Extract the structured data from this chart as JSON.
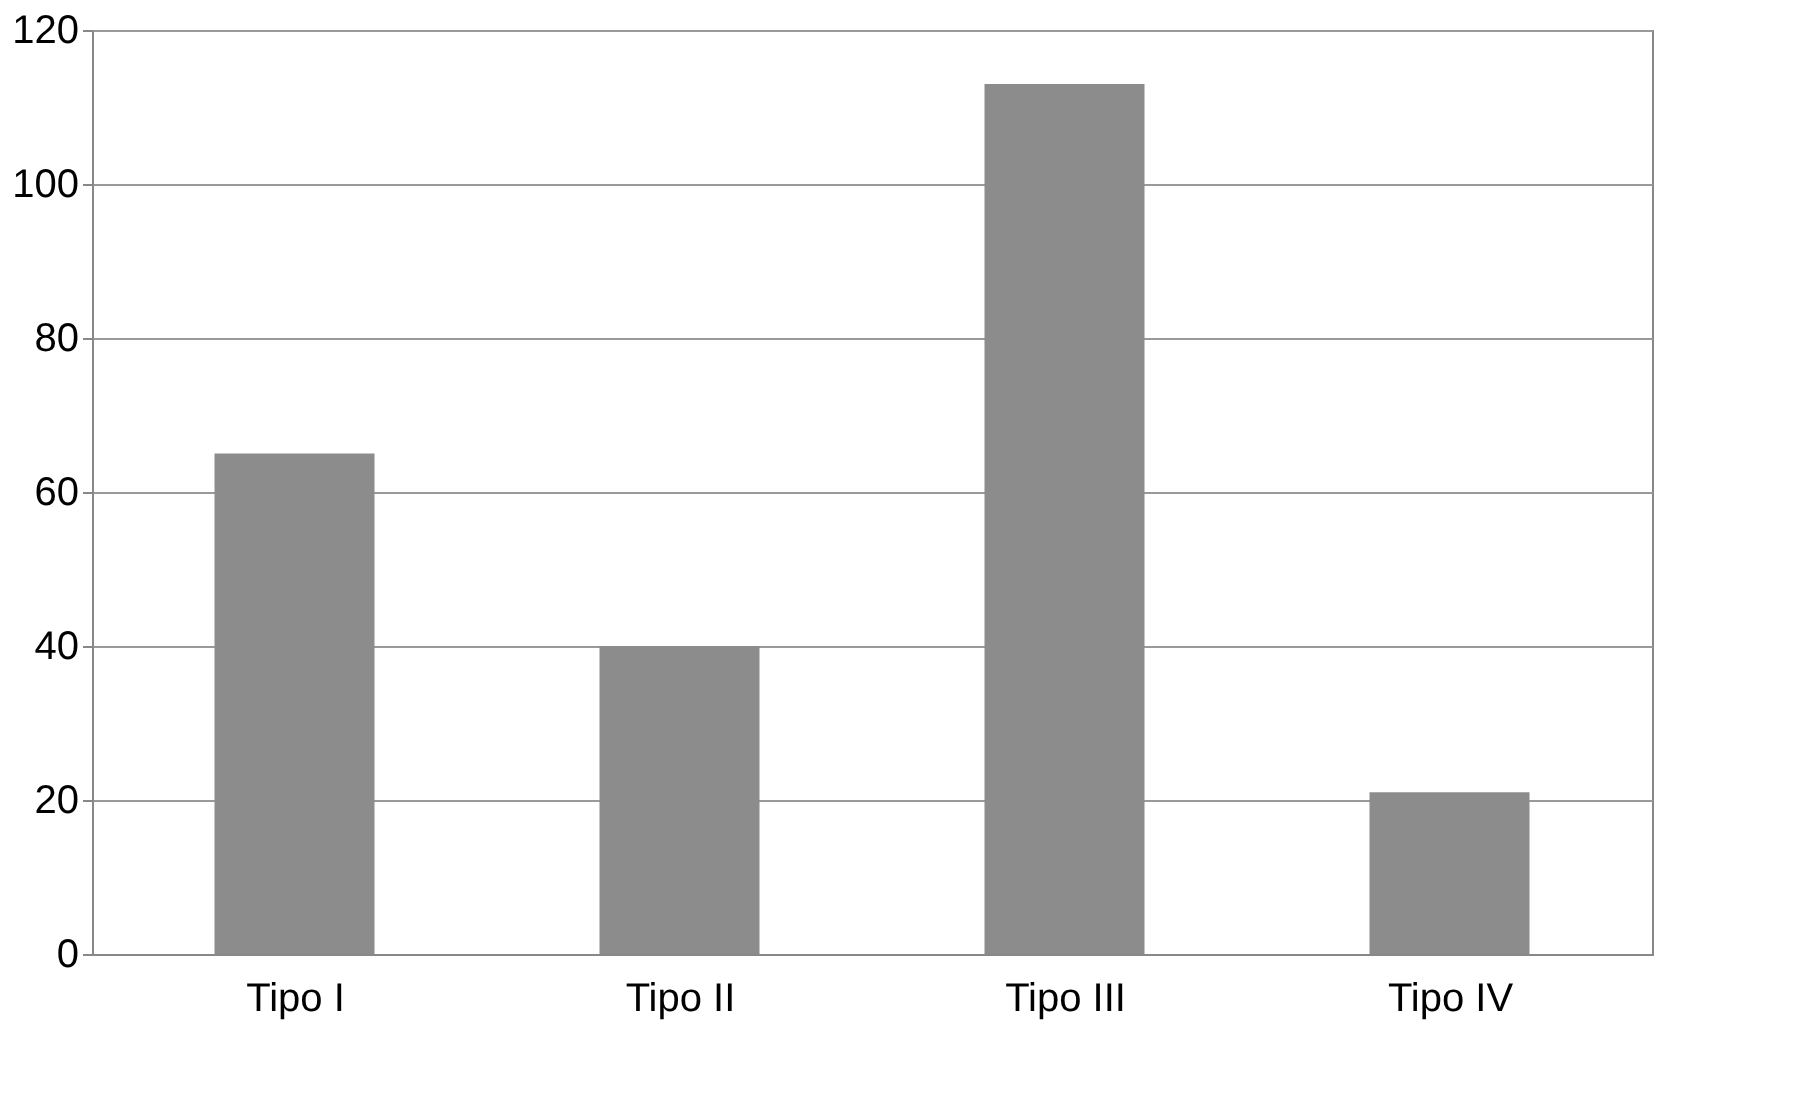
{
  "chart_data": {
    "type": "bar",
    "categories": [
      "Tipo I",
      "Tipo II",
      "Tipo III",
      "Tipo IV"
    ],
    "values": [
      65,
      40,
      113,
      21
    ],
    "color": "#8c8c8c",
    "ylim": [
      0,
      120
    ],
    "yticks": [
      0,
      20,
      40,
      60,
      80,
      100,
      120
    ],
    "grid": "y"
  }
}
